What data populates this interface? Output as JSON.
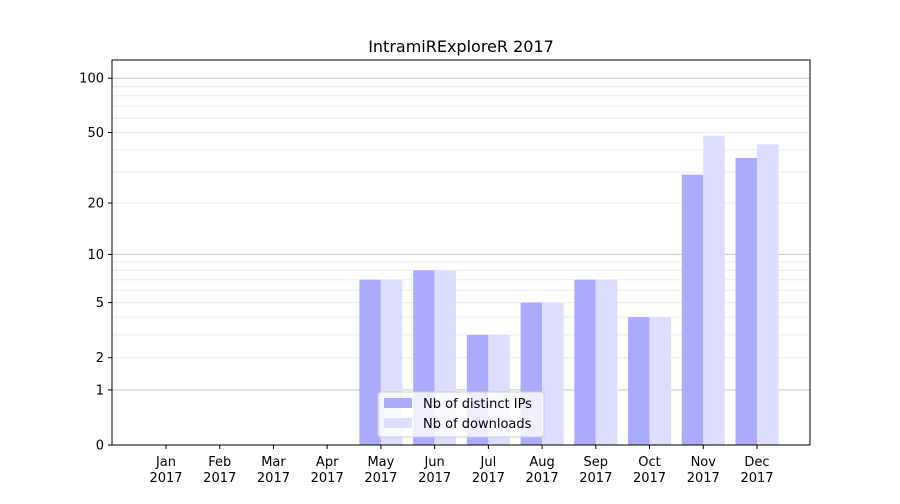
{
  "chart_data": {
    "type": "bar",
    "title": "IntramiRExploreR 2017",
    "xlabel": "",
    "ylabel": "",
    "yscale": "log(1+y)",
    "ylim": [
      0,
      126
    ],
    "yticks": [
      0,
      1,
      2,
      5,
      10,
      20,
      50,
      100
    ],
    "grid": true,
    "legend_position": "bottom-center",
    "categories": [
      "Jan\n2017",
      "Feb\n2017",
      "Mar\n2017",
      "Apr\n2017",
      "May\n2017",
      "Jun\n2017",
      "Jul\n2017",
      "Aug\n2017",
      "Sep\n2017",
      "Oct\n2017",
      "Nov\n2017",
      "Dec\n2017"
    ],
    "series": [
      {
        "name": "Nb of distinct IPs",
        "color": "#aaaaff",
        "values": [
          0,
          0,
          0,
          0,
          7,
          8,
          3,
          5,
          7,
          4,
          29,
          36
        ]
      },
      {
        "name": "Nb of downloads",
        "color": "#ddddff",
        "values": [
          0,
          0,
          0,
          0,
          7,
          8,
          3,
          5,
          7,
          4,
          48,
          43
        ]
      }
    ]
  }
}
